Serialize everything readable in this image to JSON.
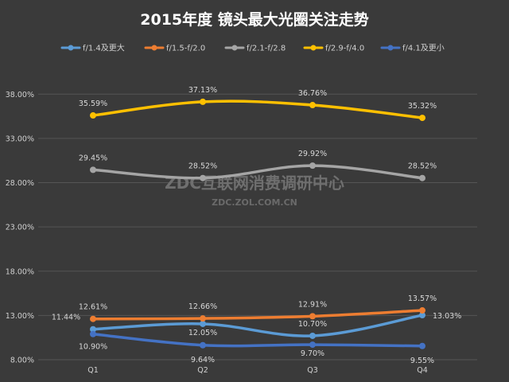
{
  "watermark": {
    "main": "ZDC互联网消费调研中心",
    "sub": "ZDC.ZOL.COM.CN"
  },
  "colors": {
    "background": "#3a3a3a",
    "grid": "#555555",
    "series": [
      "#5b9bd5",
      "#ed7d31",
      "#a5a5a5",
      "#ffc000",
      "#4472c4"
    ]
  },
  "chart_data": {
    "type": "line",
    "title": "2015年度 镜头最大光圈关注走势",
    "xlabel": "",
    "ylabel": "",
    "categories": [
      "Q1",
      "Q2",
      "Q3",
      "Q4"
    ],
    "ylim": [
      8,
      40
    ],
    "yticks": [
      8,
      13,
      18,
      23,
      28,
      33,
      38
    ],
    "ytick_labels": [
      "8.00%",
      "13.00%",
      "18.00%",
      "23.00%",
      "28.00%",
      "33.00%",
      "38.00%"
    ],
    "grid": true,
    "legend_position": "top",
    "smooth": true,
    "series": [
      {
        "name": "f/1.4及更大",
        "values": [
          11.44,
          12.05,
          10.7,
          13.03
        ],
        "labels": [
          "11.44%",
          "12.05%",
          "10.70%",
          "13.03%"
        ]
      },
      {
        "name": "f/1.5-f/2.0",
        "values": [
          12.61,
          12.66,
          12.91,
          13.57
        ],
        "labels": [
          "12.61%",
          "12.66%",
          "12.91%",
          "13.57%"
        ]
      },
      {
        "name": "f/2.1-f/2.8",
        "values": [
          29.45,
          28.52,
          29.92,
          28.52
        ],
        "labels": [
          "29.45%",
          "28.52%",
          "29.92%",
          "28.52%"
        ]
      },
      {
        "name": "f/2.9-f/4.0",
        "values": [
          35.59,
          37.13,
          36.76,
          35.32
        ],
        "labels": [
          "35.59%",
          "37.13%",
          "36.76%",
          "35.32%"
        ]
      },
      {
        "name": "f/4.1及更小",
        "values": [
          10.9,
          9.64,
          9.7,
          9.55
        ],
        "labels": [
          "10.90%",
          "9.64%",
          "9.70%",
          "9.55%"
        ]
      }
    ]
  }
}
